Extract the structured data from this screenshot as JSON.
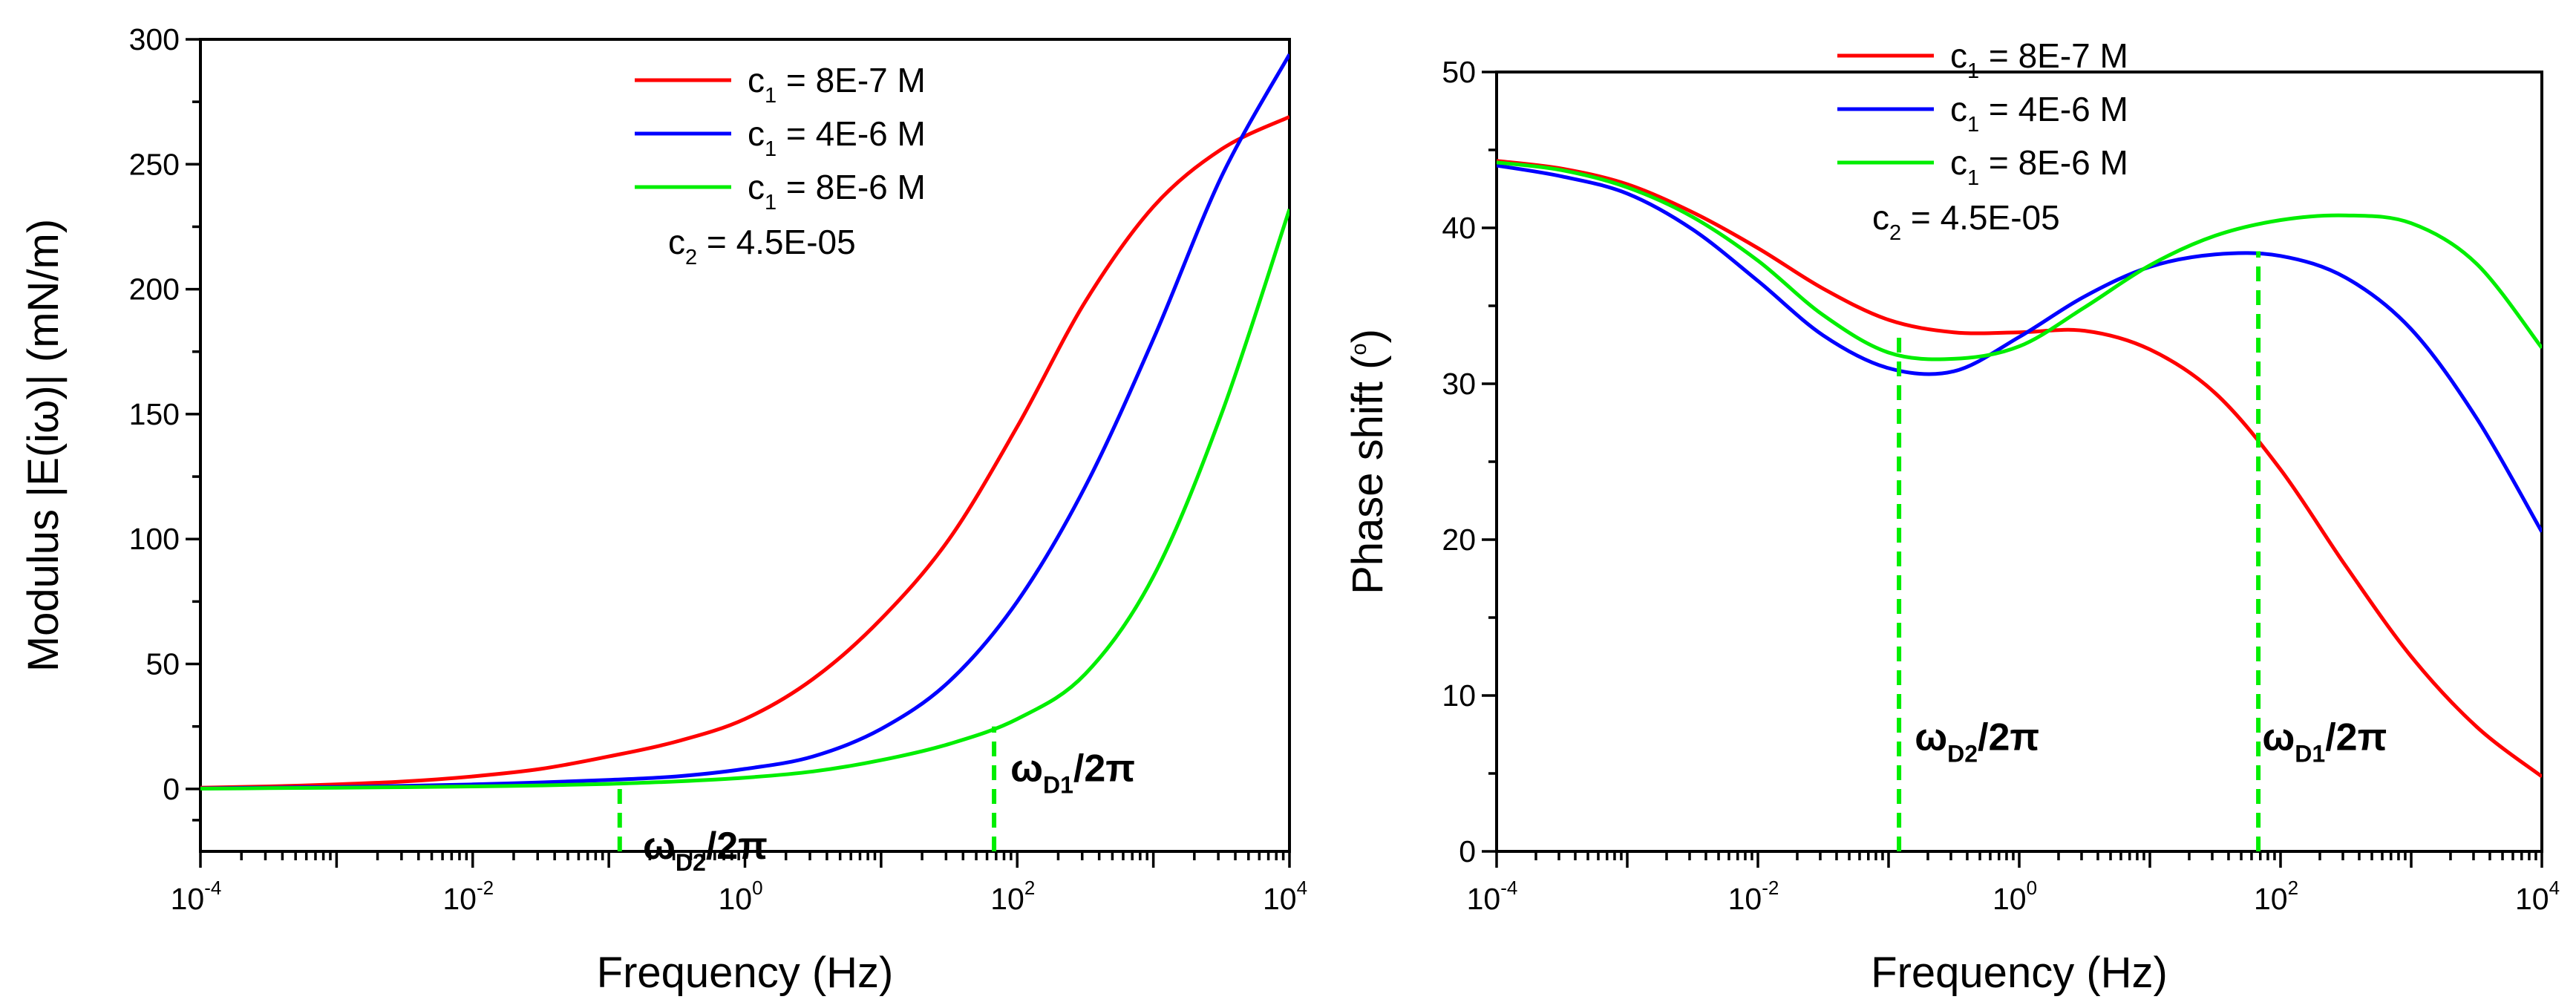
{
  "chart_data": [
    {
      "type": "line",
      "xscale": "log",
      "xlim": [
        -4,
        4
      ],
      "ylim": [
        -25,
        300
      ],
      "yticks": [
        0,
        50,
        100,
        150,
        200,
        250,
        300
      ],
      "xticks": [
        -4,
        -2,
        0,
        2,
        4
      ],
      "xlabel": "Frequency (Hz)",
      "ylabel": "Modulus |E(iω)| (mN/m)",
      "legend_position": "top-center",
      "x_log10": [
        -4,
        -3.5,
        -3,
        -2.5,
        -2,
        -1.5,
        -1,
        -0.5,
        0,
        0.5,
        1,
        1.5,
        2,
        2.5,
        3,
        3.5,
        4
      ],
      "series": [
        {
          "name": "8E-7 M",
          "color": "#ff0000",
          "values": [
            0.5,
            1,
            1.8,
            3,
            5,
            8,
            13,
            19,
            28,
            44,
            68,
            100,
            145,
            195,
            233,
            256,
            269
          ]
        },
        {
          "name": "4E-6 M",
          "color": "#0000ff",
          "values": [
            0.2,
            0.5,
            0.8,
            1.2,
            1.8,
            2.6,
            3.6,
            5,
            8,
            13,
            24,
            43,
            75,
            121,
            180,
            245,
            294
          ]
        },
        {
          "name": "8E-6 M",
          "color": "#00ee00",
          "values": [
            0.1,
            0.3,
            0.5,
            0.7,
            1,
            1.4,
            2,
            3,
            4.5,
            7,
            11.5,
            18,
            28,
            46,
            85,
            150,
            232
          ]
        }
      ],
      "markers": [
        {
          "x_log10": -0.92,
          "y_from": -25,
          "y_to": 3,
          "color": "#00ee00",
          "label_main": "ω",
          "label_sub": "D2",
          "label_tail": "/2π",
          "label_x_log10": -0.75,
          "label_y": -28
        },
        {
          "x_log10": 1.83,
          "y_from": -25,
          "y_to": 25,
          "color": "#00ee00",
          "label_main": "ω",
          "label_sub": "D1",
          "label_tail": "/2π",
          "label_x_log10": 1.95,
          "label_y": 3
        }
      ],
      "legend": {
        "entries": [
          {
            "prefix": "c",
            "sub": "1",
            "text": " = 8E-7 M",
            "color": "#ff0000"
          },
          {
            "prefix": "c",
            "sub": "1",
            "text": " = 4E-6 M",
            "color": "#0000ff"
          },
          {
            "prefix": "c",
            "sub": "1",
            "text": " = 8E-6 M",
            "color": "#00ee00"
          }
        ],
        "note": {
          "prefix": "c",
          "sub": "2",
          "text": " = 4.5E-05"
        }
      }
    },
    {
      "type": "line",
      "xscale": "log",
      "xlim": [
        -4,
        4
      ],
      "ylim": [
        0,
        50
      ],
      "yticks": [
        0,
        10,
        20,
        30,
        40,
        50
      ],
      "xticks": [
        -4,
        -2,
        0,
        2,
        4
      ],
      "xlabel": "Frequency (Hz)",
      "ylabel": "Phase shift (°)",
      "ylabel_main": "Phase shift (",
      "ylabel_sup": "o",
      "ylabel_tail": ")",
      "legend_position": "top-center",
      "x_log10": [
        -4,
        -3.5,
        -3,
        -2.5,
        -2,
        -1.5,
        -1,
        -0.5,
        0,
        0.5,
        1,
        1.5,
        2,
        2.5,
        3,
        3.5,
        4
      ],
      "series": [
        {
          "name": "8E-7 M",
          "color": "#ff0000",
          "values": [
            44.3,
            43.8,
            42.8,
            41,
            38.7,
            36.1,
            34.1,
            33.3,
            33.3,
            33.4,
            32.2,
            29.4,
            24.5,
            18.3,
            12.5,
            8,
            4.8
          ]
        },
        {
          "name": "4E-6 M",
          "color": "#0000ff",
          "values": [
            44,
            43.3,
            42.2,
            39.9,
            36.6,
            33.1,
            31,
            30.8,
            33,
            35.6,
            37.5,
            38.3,
            38.2,
            36.8,
            33.5,
            27.8,
            20.5
          ]
        },
        {
          "name": "8E-6 M",
          "color": "#00ee00",
          "values": [
            44.2,
            43.7,
            42.6,
            40.7,
            37.9,
            34.4,
            32,
            31.6,
            32.4,
            34.9,
            37.6,
            39.5,
            40.5,
            40.8,
            40.3,
            37.7,
            32.3
          ]
        }
      ],
      "markers": [
        {
          "x_log10": -0.92,
          "y_from": 0,
          "y_to": 33,
          "color": "#00ee00",
          "label_main": "ω",
          "label_sub": "D2",
          "label_tail": "/2π",
          "label_x_log10": -0.8,
          "label_y": 6.5
        },
        {
          "x_log10": 1.83,
          "y_from": 0,
          "y_to": 38.5,
          "color": "#00ee00",
          "label_main": "ω",
          "label_sub": "D1",
          "label_tail": "/2π",
          "label_x_log10": 1.86,
          "label_y": 6.5
        }
      ],
      "legend": {
        "entries": [
          {
            "prefix": "c",
            "sub": "1",
            "text": " = 8E-7 M",
            "color": "#ff0000"
          },
          {
            "prefix": "c",
            "sub": "1",
            "text": " = 4E-6 M",
            "color": "#0000ff"
          },
          {
            "prefix": "c",
            "sub": "1",
            "text": " = 8E-6 M",
            "color": "#00ee00"
          }
        ],
        "note": {
          "prefix": "c",
          "sub": "2",
          "text": " = 4.5E-05"
        }
      }
    }
  ]
}
